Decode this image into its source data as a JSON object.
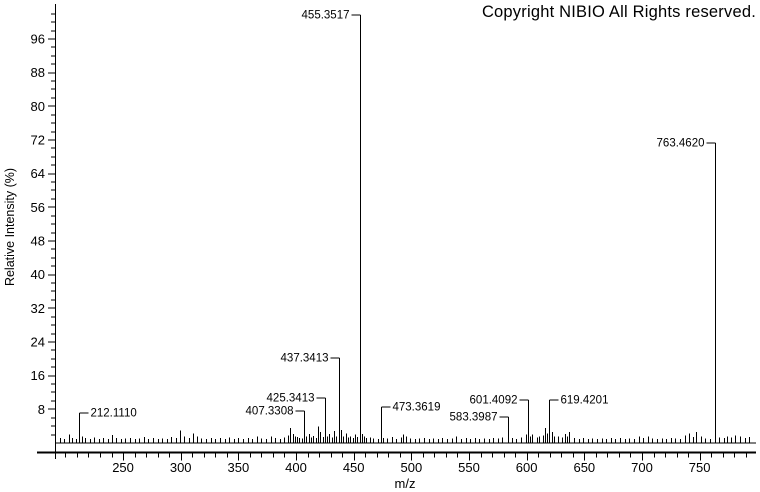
{
  "copyright": "Copyright NIBIO All Rights reserved.",
  "colors": {
    "foreground": "#000000",
    "background": "#ffffff"
  },
  "chart_data": {
    "type": "bar",
    "subtype": "mass-spectrum-stick-plot",
    "title": "",
    "xlabel": "m/z",
    "ylabel": "Relative Intensity (%)",
    "xlim": [
      191,
      798
    ],
    "ylim": [
      0,
      104.3
    ],
    "grid": false,
    "x_major_ticks": [
      250,
      300,
      350,
      400,
      450,
      500,
      550,
      600,
      650,
      700,
      750
    ],
    "x_minor_step": 10,
    "y_major_ticks": [
      8,
      16,
      24,
      32,
      40,
      48,
      56,
      64,
      72,
      80,
      88,
      96
    ],
    "y_minor_step": 2,
    "labeled_peaks": [
      {
        "mz": 212.111,
        "intensity": 5.5,
        "label": "212.1110",
        "label_side": "right"
      },
      {
        "mz": 407.3308,
        "intensity": 6.0,
        "label": "407.3308",
        "label_side": "left"
      },
      {
        "mz": 425.3413,
        "intensity": 9.0,
        "label": "425.3413",
        "label_side": "left"
      },
      {
        "mz": 437.3413,
        "intensity": 18.5,
        "label": "437.3413",
        "label_side": "left"
      },
      {
        "mz": 455.3517,
        "intensity": 100.0,
        "label": "455.3517",
        "label_side": "left"
      },
      {
        "mz": 473.3619,
        "intensity": 7.0,
        "label": "473.3619",
        "label_side": "right"
      },
      {
        "mz": 583.3987,
        "intensity": 4.5,
        "label": "583.3987",
        "label_side": "left"
      },
      {
        "mz": 601.4092,
        "intensity": 8.5,
        "label": "601.4092",
        "label_side": "left"
      },
      {
        "mz": 619.4201,
        "intensity": 8.5,
        "label": "619.4201",
        "label_side": "right"
      },
      {
        "mz": 763.462,
        "intensity": 69.5,
        "label": "763.4620",
        "label_side": "left"
      }
    ],
    "minor_peaks": [
      [
        195,
        1.2
      ],
      [
        199,
        1.0
      ],
      [
        203,
        2.0
      ],
      [
        206,
        1.2
      ],
      [
        209,
        1.0
      ],
      [
        214,
        1.5
      ],
      [
        217,
        1.2
      ],
      [
        221,
        1.0
      ],
      [
        225,
        1.3
      ],
      [
        229,
        1.0
      ],
      [
        233,
        1.2
      ],
      [
        237,
        1.0
      ],
      [
        240,
        1.9
      ],
      [
        244,
        1.2
      ],
      [
        248,
        1.0
      ],
      [
        252,
        1.1
      ],
      [
        256,
        1.2
      ],
      [
        260,
        1.0
      ],
      [
        264,
        1.1
      ],
      [
        268,
        1.4
      ],
      [
        272,
        1.0
      ],
      [
        276,
        1.2
      ],
      [
        280,
        1.0
      ],
      [
        284,
        1.1
      ],
      [
        288,
        1.0
      ],
      [
        292,
        1.4
      ],
      [
        296,
        1.2
      ],
      [
        299,
        3.0
      ],
      [
        303,
        1.5
      ],
      [
        307,
        1.2
      ],
      [
        311,
        2.3
      ],
      [
        314,
        1.6
      ],
      [
        318,
        1.1
      ],
      [
        322,
        1.0
      ],
      [
        326,
        1.2
      ],
      [
        330,
        1.0
      ],
      [
        334,
        1.2
      ],
      [
        338,
        1.0
      ],
      [
        342,
        1.3
      ],
      [
        346,
        1.0
      ],
      [
        350,
        1.2
      ],
      [
        354,
        1.0
      ],
      [
        358,
        1.2
      ],
      [
        362,
        1.0
      ],
      [
        366,
        1.5
      ],
      [
        370,
        1.1
      ],
      [
        374,
        1.0
      ],
      [
        378,
        1.5
      ],
      [
        382,
        1.2
      ],
      [
        386,
        1.0
      ],
      [
        390,
        1.3
      ],
      [
        393,
        1.8
      ],
      [
        395,
        3.6
      ],
      [
        397,
        2.1
      ],
      [
        399,
        1.6
      ],
      [
        401,
        1.4
      ],
      [
        403,
        1.2
      ],
      [
        405,
        1.1
      ],
      [
        409,
        1.5
      ],
      [
        411,
        2.1
      ],
      [
        413,
        1.3
      ],
      [
        415,
        1.7
      ],
      [
        417,
        1.2
      ],
      [
        419,
        3.9
      ],
      [
        421,
        2.6
      ],
      [
        423,
        1.4
      ],
      [
        427,
        1.6
      ],
      [
        429,
        2.1
      ],
      [
        431,
        1.3
      ],
      [
        433,
        2.9
      ],
      [
        435,
        1.6
      ],
      [
        439,
        3.1
      ],
      [
        441,
        1.6
      ],
      [
        443,
        2.3
      ],
      [
        445,
        1.3
      ],
      [
        447,
        1.6
      ],
      [
        449,
        1.2
      ],
      [
        451,
        2.0
      ],
      [
        453,
        1.4
      ],
      [
        457,
        2.1
      ],
      [
        459,
        1.6
      ],
      [
        461,
        1.2
      ],
      [
        464,
        1.3
      ],
      [
        467,
        1.1
      ],
      [
        471,
        1.0
      ],
      [
        475,
        1.2
      ],
      [
        479,
        1.1
      ],
      [
        483,
        1.4
      ],
      [
        487,
        1.0
      ],
      [
        491,
        1.3
      ],
      [
        493,
        2.0
      ],
      [
        495,
        1.5
      ],
      [
        499,
        1.1
      ],
      [
        503,
        1.0
      ],
      [
        507,
        1.1
      ],
      [
        511,
        1.2
      ],
      [
        515,
        1.0
      ],
      [
        519,
        1.1
      ],
      [
        523,
        1.0
      ],
      [
        527,
        1.2
      ],
      [
        531,
        1.0
      ],
      [
        535,
        1.1
      ],
      [
        539,
        1.5
      ],
      [
        543,
        1.0
      ],
      [
        547,
        1.2
      ],
      [
        551,
        1.0
      ],
      [
        555,
        1.2
      ],
      [
        559,
        1.0
      ],
      [
        563,
        1.1
      ],
      [
        567,
        1.0
      ],
      [
        571,
        1.2
      ],
      [
        575,
        1.1
      ],
      [
        579,
        1.3
      ],
      [
        587,
        1.2
      ],
      [
        591,
        1.0
      ],
      [
        595,
        1.3
      ],
      [
        599,
        2.0
      ],
      [
        603,
        1.5
      ],
      [
        605,
        2.0
      ],
      [
        609,
        1.3
      ],
      [
        611,
        1.6
      ],
      [
        614,
        1.8
      ],
      [
        616,
        3.6
      ],
      [
        618,
        2.2
      ],
      [
        622,
        2.6
      ],
      [
        624,
        1.6
      ],
      [
        627,
        1.5
      ],
      [
        631,
        1.3
      ],
      [
        633,
        2.1
      ],
      [
        635,
        1.6
      ],
      [
        637,
        2.6
      ],
      [
        641,
        1.2
      ],
      [
        645,
        1.0
      ],
      [
        649,
        1.2
      ],
      [
        653,
        1.0
      ],
      [
        657,
        1.1
      ],
      [
        661,
        1.0
      ],
      [
        665,
        1.1
      ],
      [
        669,
        1.0
      ],
      [
        673,
        1.2
      ],
      [
        677,
        1.0
      ],
      [
        681,
        1.2
      ],
      [
        685,
        1.0
      ],
      [
        689,
        1.1
      ],
      [
        693,
        1.0
      ],
      [
        697,
        1.6
      ],
      [
        701,
        1.2
      ],
      [
        705,
        1.6
      ],
      [
        709,
        1.1
      ],
      [
        713,
        1.0
      ],
      [
        717,
        1.1
      ],
      [
        721,
        1.0
      ],
      [
        725,
        1.2
      ],
      [
        729,
        1.1
      ],
      [
        733,
        1.0
      ],
      [
        737,
        1.8
      ],
      [
        741,
        2.2
      ],
      [
        744,
        1.4
      ],
      [
        747,
        2.6
      ],
      [
        751,
        1.5
      ],
      [
        755,
        1.1
      ],
      [
        759,
        1.0
      ],
      [
        767,
        1.3
      ],
      [
        771,
        1.2
      ],
      [
        774,
        1.6
      ],
      [
        777,
        1.3
      ],
      [
        781,
        1.8
      ],
      [
        785,
        1.5
      ],
      [
        789,
        1.2
      ],
      [
        793,
        1.4
      ]
    ]
  }
}
